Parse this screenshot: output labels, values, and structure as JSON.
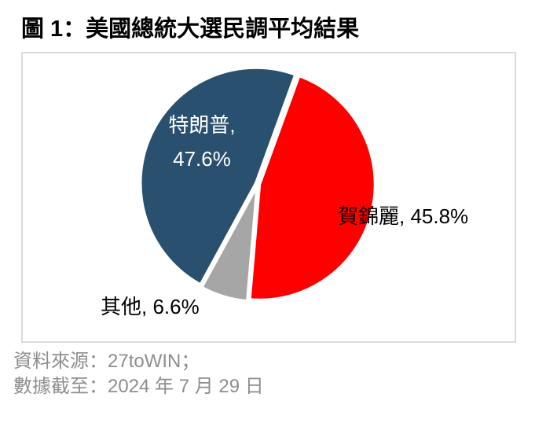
{
  "chart_data": {
    "type": "pie",
    "title": "圖 1：美國總統大選民調平均結果",
    "legend": "none",
    "start_angle_deg": 20,
    "border_color": "#DBDBDB",
    "slices": [
      {
        "key": "harris",
        "name": "賀錦麗",
        "value": 45.8,
        "color": "#FE0000",
        "label": "賀錦麗, 45.8%",
        "label_color": "#000000",
        "label_position": "outside-right"
      },
      {
        "key": "others",
        "name": "其他",
        "value": 6.6,
        "color": "#A6A6A6",
        "label": "其他, 6.6%",
        "label_color": "#000000",
        "label_position": "outside-bottom-left"
      },
      {
        "key": "trump",
        "name": "特朗普",
        "value": 47.6,
        "color": "#2A5070",
        "label": "特朗普, 47.6%",
        "label_line1": "特朗普,",
        "label_line2": "47.6%",
        "label_color": "#FFFFFF",
        "label_position": "inside"
      }
    ]
  },
  "footer": {
    "source_line": "資料來源：27toWIN；",
    "data_asof_line": "數據截至：2024 年 7 月 29 日",
    "text_color": "#8E8E8E"
  }
}
